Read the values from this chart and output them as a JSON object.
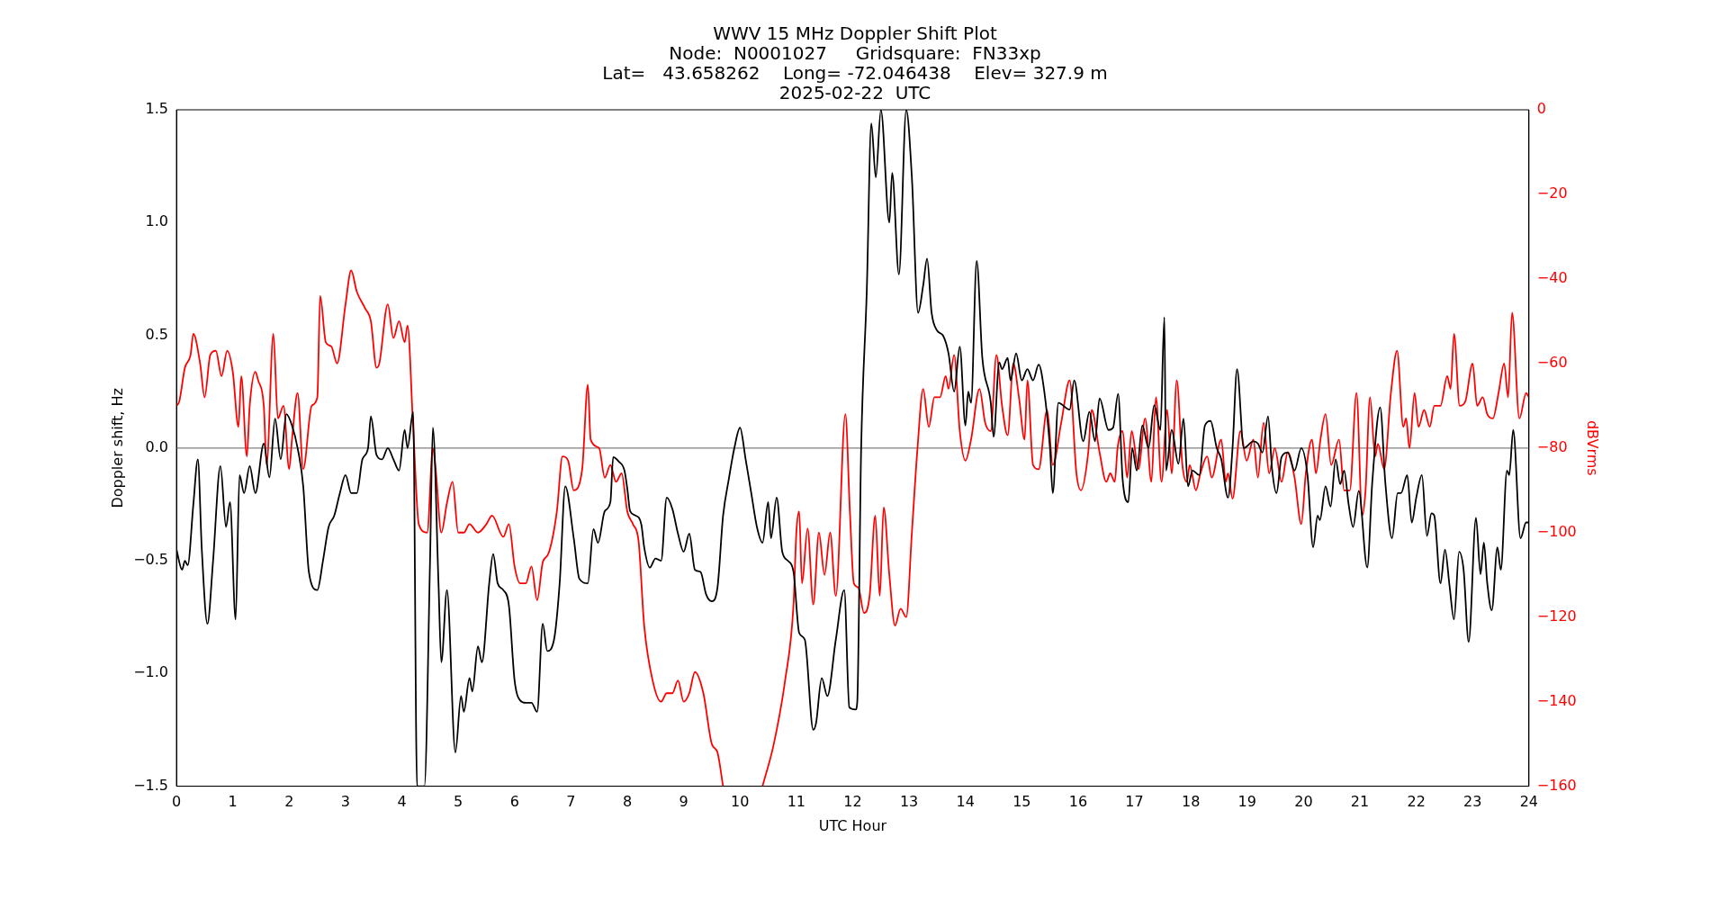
{
  "chart_data": {
    "type": "line",
    "title": "WWV 15 MHz Doppler Shift Plot\nNode:  N0001027     Gridsquare:  FN33xp\nLat=   43.658262    Long= -72.046438    Elev= 327.9 m\n2025-02-22  UTC",
    "xlabel": "UTC Hour",
    "ylabel": "Doppler shift, Hz",
    "y2label": "dBVrms",
    "xlim": [
      0,
      24
    ],
    "xticks": [
      0,
      1,
      2,
      3,
      4,
      5,
      6,
      7,
      8,
      9,
      10,
      11,
      12,
      13,
      14,
      15,
      16,
      17,
      18,
      19,
      20,
      21,
      22,
      23,
      24
    ],
    "ylim": [
      -1.5,
      1.5
    ],
    "yticks": [
      {
        "value": -1.5,
        "label": "−1.5"
      },
      {
        "value": -1,
        "label": "−1.0"
      },
      {
        "value": -0.5,
        "label": "−0.5"
      },
      {
        "value": 0,
        "label": "0.0"
      },
      {
        "value": 0.5,
        "label": "0.5"
      },
      {
        "value": 1,
        "label": "1.0"
      },
      {
        "value": 1.5,
        "label": "1.5"
      }
    ],
    "y2lim": [
      -160,
      0
    ],
    "y2ticks": [
      {
        "value": -160,
        "label": "−160"
      },
      {
        "value": -140,
        "label": "−140"
      },
      {
        "value": -120,
        "label": "−120"
      },
      {
        "value": -100,
        "label": "−100"
      },
      {
        "value": -80,
        "label": "−80"
      },
      {
        "value": -60,
        "label": "−60"
      },
      {
        "value": -40,
        "label": "−40"
      },
      {
        "value": -20,
        "label": "−20"
      },
      0
    ],
    "ref_lines": [
      {
        "axis": "y",
        "value": 0,
        "color": "#808080"
      }
    ],
    "grid": false,
    "legend": false,
    "series": [
      {
        "color": "#000000",
        "axis": "y",
        "x": [
          0,
          0.1,
          0.15,
          0.2,
          0.3,
          0.38,
          0.45,
          0.55,
          0.65,
          0.78,
          0.88,
          0.95,
          1.05,
          1.12,
          1.2,
          1.3,
          1.4,
          1.55,
          1.65,
          1.75,
          1.85,
          1.95,
          2.05,
          2.15,
          2.25,
          2.35,
          2.5,
          2.6,
          2.7,
          2.8,
          2.9,
          3.0,
          3.1,
          3.2,
          3.3,
          3.4,
          3.45,
          3.55,
          3.65,
          3.75,
          3.85,
          3.95,
          4.05,
          4.1,
          4.2,
          4.27,
          4.4,
          4.5,
          4.55,
          4.65,
          4.7,
          4.8,
          4.95,
          5.05,
          5.1,
          5.2,
          5.25,
          5.35,
          5.42,
          5.55,
          5.62,
          5.7,
          5.8,
          5.9,
          6.0,
          6.1,
          6.2,
          6.3,
          6.4,
          6.5,
          6.58,
          6.7,
          6.8,
          6.9,
          7.05,
          7.15,
          7.3,
          7.4,
          7.48,
          7.6,
          7.7,
          7.75,
          7.85,
          7.95,
          8.0,
          8.05,
          8.15,
          8.25,
          8.3,
          8.4,
          8.5,
          8.6,
          8.7,
          8.8,
          8.9,
          9.0,
          9.1,
          9.2,
          9.3,
          9.4,
          9.5,
          9.6,
          9.7,
          9.8,
          9.9,
          10.0,
          10.1,
          10.2,
          10.3,
          10.4,
          10.5,
          10.55,
          10.65,
          10.75,
          10.85,
          10.95,
          11.05,
          11.15,
          11.3,
          11.35,
          11.45,
          11.55,
          11.7,
          11.85,
          11.94,
          12.05,
          12.08,
          12.15,
          12.25,
          12.33,
          12.41,
          12.5,
          12.65,
          12.7,
          12.82,
          12.95,
          13.05,
          13.16,
          13.25,
          13.32,
          13.4,
          13.5,
          13.6,
          13.7,
          13.8,
          13.9,
          14.0,
          14.05,
          14.1,
          14.2,
          14.3,
          14.45,
          14.5,
          14.6,
          14.65,
          14.75,
          14.8,
          14.9,
          15.0,
          15.1,
          15.2,
          15.3,
          15.4,
          15.5,
          15.55,
          15.65,
          15.85,
          15.93,
          16.09,
          16.2,
          16.3,
          16.38,
          16.54,
          16.62,
          16.71,
          16.79,
          16.89,
          16.96,
          17.04,
          17.14,
          17.25,
          17.35,
          17.46,
          17.53,
          17.56,
          17.66,
          17.78,
          17.87,
          17.95,
          18.03,
          18.15,
          18.25,
          18.35,
          18.46,
          18.54,
          18.66,
          18.74,
          18.82,
          18.94,
          19.11,
          19.19,
          19.27,
          19.37,
          19.44,
          19.52,
          19.61,
          19.72,
          19.84,
          19.96,
          20.07,
          20.17,
          20.25,
          20.29,
          20.39,
          20.48,
          20.57,
          20.65,
          20.72,
          20.8,
          20.88,
          20.98,
          21.13,
          21.22,
          21.36,
          21.45,
          21.57,
          21.67,
          21.73,
          21.84,
          21.92,
          22.0,
          22.1,
          22.19,
          22.27,
          22.32,
          22.43,
          22.51,
          22.59,
          22.67,
          22.76,
          22.84,
          22.93,
          23.06,
          23.14,
          23.2,
          23.26,
          23.34,
          23.44,
          23.5,
          23.61,
          23.65,
          23.72,
          23.85,
          23.95,
          24.0
        ],
        "values": [
          -0.45,
          -0.54,
          -0.5,
          -0.52,
          -0.25,
          -0.05,
          -0.45,
          -0.78,
          -0.5,
          -0.08,
          -0.35,
          -0.24,
          -0.76,
          -0.12,
          -0.2,
          -0.08,
          -0.2,
          0.02,
          -0.13,
          0.13,
          -0.05,
          0.15,
          0.1,
          0.0,
          -0.17,
          -0.55,
          -0.63,
          -0.5,
          -0.35,
          -0.3,
          -0.2,
          -0.12,
          -0.2,
          -0.2,
          -0.05,
          0.0,
          0.14,
          -0.03,
          -0.05,
          0.0,
          -0.05,
          -0.1,
          0.08,
          0.0,
          0.16,
          -1.5,
          -1.5,
          -0.5,
          0.09,
          -0.6,
          -0.95,
          -0.63,
          -1.35,
          -1.1,
          -1.17,
          -1.02,
          -1.08,
          -0.88,
          -0.95,
          -0.6,
          -0.47,
          -0.6,
          -0.63,
          -0.7,
          -1.03,
          -1.12,
          -1.13,
          -1.13,
          -1.17,
          -0.78,
          -0.9,
          -0.85,
          -0.6,
          -0.17,
          -0.4,
          -0.58,
          -0.6,
          -0.36,
          -0.42,
          -0.28,
          -0.24,
          -0.04,
          -0.06,
          -0.1,
          -0.18,
          -0.28,
          -0.3,
          -0.34,
          -0.44,
          -0.53,
          -0.49,
          -0.5,
          -0.22,
          -0.27,
          -0.38,
          -0.46,
          -0.38,
          -0.54,
          -0.55,
          -0.65,
          -0.68,
          -0.62,
          -0.3,
          -0.14,
          0.0,
          0.09,
          -0.05,
          -0.2,
          -0.35,
          -0.42,
          -0.24,
          -0.4,
          -0.22,
          -0.46,
          -0.5,
          -0.55,
          -0.82,
          -0.85,
          -1.25,
          -1.22,
          -1.02,
          -1.1,
          -0.85,
          -0.63,
          -1.15,
          -1.16,
          -1.13,
          0.0,
          0.7,
          1.44,
          1.2,
          1.5,
          1.0,
          1.22,
          0.77,
          1.5,
          1.2,
          0.6,
          0.72,
          0.84,
          0.6,
          0.52,
          0.5,
          0.42,
          0.25,
          0.45,
          0.1,
          0.25,
          0.2,
          0.83,
          0.4,
          0.2,
          0.05,
          0.38,
          0.35,
          0.4,
          0.3,
          0.42,
          0.3,
          0.35,
          0.3,
          0.37,
          0.25,
          0.0,
          -0.2,
          0.2,
          0.17,
          0.3,
          0.03,
          0.16,
          0.03,
          0.22,
          0.08,
          0.09,
          0.24,
          -0.14,
          -0.24,
          0.0,
          -0.1,
          0.1,
          0.0,
          0.19,
          0.08,
          0.58,
          -0.1,
          0.08,
          -0.07,
          0.13,
          -0.17,
          -0.1,
          -0.12,
          0.1,
          0.12,
          0.0,
          -0.05,
          -0.22,
          0.0,
          0.35,
          0.0,
          0.03,
          0.02,
          -0.02,
          0.14,
          -0.09,
          -0.2,
          -0.04,
          -0.02,
          -0.1,
          0.0,
          -0.12,
          -0.44,
          -0.3,
          -0.32,
          -0.17,
          -0.26,
          -0.05,
          -0.16,
          -0.1,
          -0.25,
          -0.35,
          -0.19,
          -0.53,
          -0.15,
          0.18,
          -0.15,
          -0.4,
          -0.2,
          -0.2,
          -0.12,
          -0.33,
          -0.22,
          -0.12,
          -0.39,
          -0.29,
          -0.3,
          -0.6,
          -0.45,
          -0.61,
          -0.76,
          -0.46,
          -0.54,
          -0.86,
          -0.31,
          -0.56,
          -0.42,
          -0.6,
          -0.72,
          -0.44,
          -0.54,
          -0.1,
          -0.12,
          0.08,
          -0.4,
          -0.33,
          -0.33
        ]
      },
      {
        "color": "#ff0000",
        "axis": "y2",
        "x": [
          0,
          0.05,
          0.15,
          0.25,
          0.3,
          0.42,
          0.5,
          0.6,
          0.7,
          0.8,
          0.9,
          1.0,
          1.1,
          1.15,
          1.25,
          1.3,
          1.4,
          1.45,
          1.55,
          1.6,
          1.72,
          1.8,
          1.9,
          2.0,
          2.05,
          2.15,
          2.25,
          2.4,
          2.5,
          2.55,
          2.65,
          2.75,
          2.85,
          3.0,
          3.1,
          3.2,
          3.35,
          3.45,
          3.55,
          3.6,
          3.75,
          3.85,
          3.95,
          4.05,
          4.1,
          4.2,
          4.3,
          4.45,
          4.55,
          4.6,
          4.7,
          4.8,
          4.9,
          5.0,
          5.1,
          5.2,
          5.35,
          5.5,
          5.6,
          5.8,
          5.9,
          6.0,
          6.1,
          6.2,
          6.3,
          6.4,
          6.5,
          6.6,
          6.75,
          6.85,
          6.95,
          7.05,
          7.2,
          7.3,
          7.35,
          7.5,
          7.6,
          7.7,
          7.8,
          7.9,
          8.0,
          8.1,
          8.2,
          8.3,
          8.45,
          8.6,
          8.7,
          8.8,
          8.9,
          9.0,
          9.1,
          9.2,
          9.35,
          9.5,
          9.6,
          9.7,
          10.0,
          10.4,
          10.6,
          10.8,
          10.95,
          11.0,
          11.05,
          11.1,
          11.2,
          11.3,
          11.4,
          11.5,
          11.6,
          11.7,
          11.87,
          11.95,
          12.02,
          12.1,
          12.2,
          12.3,
          12.4,
          12.48,
          12.55,
          12.65,
          12.75,
          12.85,
          12.95,
          13.05,
          13.15,
          13.25,
          13.35,
          13.45,
          13.55,
          13.65,
          13.7,
          13.8,
          13.9,
          14.0,
          14.1,
          14.25,
          14.35,
          14.45,
          14.55,
          14.65,
          14.75,
          14.85,
          14.95,
          15.05,
          15.1,
          15.2,
          15.3,
          15.45,
          15.55,
          15.7,
          15.85,
          15.97,
          16.05,
          16.18,
          16.24,
          16.38,
          16.5,
          16.57,
          16.65,
          16.7,
          16.79,
          16.87,
          16.95,
          17.07,
          17.19,
          17.3,
          17.38,
          17.48,
          17.58,
          17.66,
          17.75,
          17.85,
          17.93,
          17.98,
          18.09,
          18.17,
          18.29,
          18.37,
          18.54,
          18.62,
          18.66,
          18.74,
          18.88,
          18.99,
          19.11,
          19.19,
          19.29,
          19.39,
          19.49,
          19.61,
          19.72,
          19.84,
          19.96,
          20.04,
          20.15,
          20.22,
          20.3,
          20.39,
          20.49,
          20.63,
          20.72,
          20.82,
          20.94,
          21.04,
          21.1,
          21.18,
          21.27,
          21.32,
          21.43,
          21.55,
          21.66,
          21.77,
          21.82,
          21.88,
          21.97,
          22.04,
          22.14,
          22.24,
          22.32,
          22.43,
          22.55,
          22.61,
          22.67,
          22.77,
          22.87,
          23.0,
          23.08,
          23.18,
          23.26,
          23.36,
          23.46,
          23.56,
          23.63,
          23.7,
          23.83,
          23.95,
          24.0
        ],
        "values": [
          -70,
          -69,
          -61,
          -58,
          -53,
          -60,
          -68,
          -58,
          -57,
          -63,
          -57,
          -62,
          -75,
          -63,
          -82,
          -70,
          -62,
          -64,
          -70,
          -84,
          -53,
          -73,
          -70,
          -85,
          -78,
          -67,
          -85,
          -70,
          -68,
          -44,
          -55,
          -56,
          -60,
          -46,
          -38,
          -43,
          -47,
          -50,
          -61,
          -60,
          -46,
          -54,
          -50,
          -55,
          -51,
          -75,
          -98,
          -100,
          -80,
          -85,
          -100,
          -93,
          -88,
          -100,
          -100,
          -98,
          -100,
          -98,
          -96,
          -101,
          -98,
          -108,
          -112,
          -112,
          -108,
          -116,
          -107,
          -105,
          -95,
          -82,
          -83,
          -90,
          -85,
          -65,
          -78,
          -80,
          -87,
          -84,
          -88,
          -86,
          -95,
          -98,
          -102,
          -122,
          -135,
          -140,
          -138,
          -138,
          -135,
          -140,
          -138,
          -133,
          -138,
          -150,
          -152,
          -160,
          null,
          -160,
          -150,
          -135,
          -117,
          -100,
          -95,
          -112,
          -99,
          -117,
          -100,
          -110,
          -100,
          -115,
          -72,
          -95,
          -112,
          -113,
          -119,
          -115,
          -96,
          -115,
          -94,
          -110,
          -122,
          -118,
          -120,
          -100,
          -80,
          -66,
          -75,
          -68,
          -68,
          -63,
          -66,
          -58,
          -76,
          -83,
          -78,
          -66,
          -74,
          -76,
          -58,
          -70,
          -77,
          -60,
          -68,
          -78,
          -64,
          -84,
          -85,
          -71,
          -84,
          -74,
          -64,
          -86,
          -90,
          -81,
          -71,
          -81,
          -88,
          -86,
          -88,
          -80,
          -76,
          -87,
          -76,
          -85,
          -73,
          -88,
          -68,
          -88,
          -71,
          -86,
          -64,
          -84,
          -88,
          -84,
          -90,
          -86,
          -82,
          -87,
          -78,
          -88,
          -86,
          -92,
          -76,
          -83,
          -78,
          -87,
          -74,
          -86,
          -80,
          -88,
          -81,
          -87,
          -98,
          -86,
          -78,
          -86,
          -78,
          -72,
          -84,
          -78,
          -90,
          -90,
          -67,
          -96,
          -90,
          -68,
          -82,
          -79,
          -85,
          -67,
          -57,
          -75,
          -73,
          -80,
          -67,
          -75,
          -71,
          -75,
          -70,
          -70,
          -63,
          -66,
          -53,
          -70,
          -69,
          -60,
          -70,
          -68,
          -72,
          -73,
          -67,
          -60,
          -68,
          -48,
          -73,
          -67,
          -68
        ]
      }
    ]
  }
}
